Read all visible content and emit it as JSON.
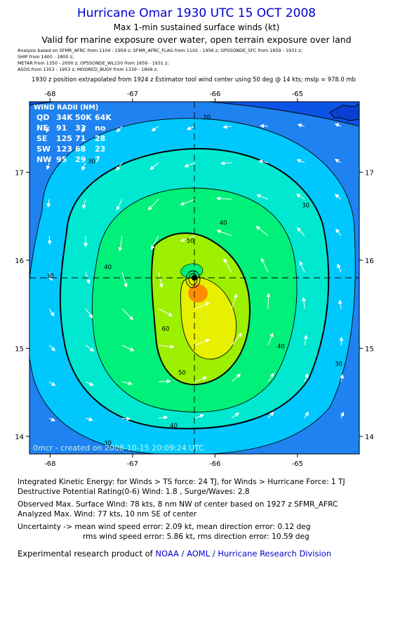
{
  "header": {
    "title": "Hurricane Omar 1930 UTC 15 OCT 2008",
    "subtitle": "Max 1-min sustained surface winds (kt)",
    "valid": "Valid for marine exposure over water, open terrain exposure over land"
  },
  "sources": [
    "Analysis based on  SFMR_AFRC from 1104 - 1959 z;  SFMR_AFRC_FLAG from 1102 - 1956 z;  GPSSONDE_SFC from 1659 - 1931 z;",
    "SHIP from 1400 - 1800 z;",
    "METAR from 1350 - 2000 z;  GPSSONDE_WL150 from 1659 - 1931 z;",
    "ASOS from 1353 - 1953 z;  MOORED_BUOY from 1339 - 1849 z;"
  ],
  "position_note": "1930 z position extrapolated from 1924 z Estimator tool wind center using 50 deg @ 14 kts; mslp = 978.0 mb",
  "wind_radii": {
    "title": "WIND RADII (NM)",
    "header": [
      "QD",
      "34K",
      "50K",
      "64K"
    ],
    "rows": [
      [
        "NE",
        "91",
        "33",
        "no"
      ],
      [
        "SE",
        "125",
        "71",
        "28"
      ],
      [
        "SW",
        "123",
        "68",
        "23"
      ],
      [
        "NW",
        "95",
        "29",
        "7"
      ]
    ]
  },
  "watermark": "0mcr - created on 2008-10-15 20:09:24 UTC",
  "chart_data": {
    "type": "heatmap",
    "x_ticks": [
      -68,
      -67,
      -66,
      -65
    ],
    "y_ticks": [
      14,
      15,
      16,
      17
    ],
    "xlim": [
      -68.25,
      -64.25
    ],
    "ylim": [
      13.8,
      17.8
    ],
    "center": {
      "lon": -66.25,
      "lat": 15.8
    },
    "contour_levels": [
      20,
      30,
      40,
      50,
      60,
      70
    ],
    "contour_labels": [
      {
        "text": "20",
        "lon": -66.1,
        "lat": 17.6
      },
      {
        "text": "30",
        "lon": -67.5,
        "lat": 17.1
      },
      {
        "text": "30",
        "lon": -64.9,
        "lat": 16.6
      },
      {
        "text": "30",
        "lon": -68.0,
        "lat": 15.8
      },
      {
        "text": "30",
        "lon": -64.5,
        "lat": 14.8
      },
      {
        "text": "30",
        "lon": -67.3,
        "lat": 13.9
      },
      {
        "text": "40",
        "lon": -65.9,
        "lat": 16.4
      },
      {
        "text": "40",
        "lon": -67.3,
        "lat": 15.9
      },
      {
        "text": "40",
        "lon": -65.2,
        "lat": 15.0
      },
      {
        "text": "40",
        "lon": -66.5,
        "lat": 14.1
      },
      {
        "text": "50",
        "lon": -66.3,
        "lat": 16.2
      },
      {
        "text": "50",
        "lon": -66.4,
        "lat": 14.7
      },
      {
        "text": "60",
        "lon": -66.6,
        "lat": 15.2
      }
    ],
    "colors": {
      "lt20": "#0b54e6",
      "20-30": "#1e82f0",
      "30-40": "#00c8ff",
      "40-50": "#00e8d0",
      "50-60": "#00f07a",
      "60-70": "#9cf000",
      "70-80": "#e6f000",
      "80plus": "#ff8c00"
    }
  },
  "summary": {
    "ike": "Integrated Kinetic Energy:  for Winds > TS force: 24 TJ,  for Winds > Hurricane Force: 1 TJ",
    "dpr": "Destructive Potential Rating(0-6)   Wind: 1.8 , Surge/Waves: 2.8",
    "obs_max": "Observed Max. Surface Wind: 78 kts, 8 nm NW of center based on 1927 z SFMR_AFRC",
    "analyzed_max": "Analyzed Max. Wind: 77 kts, 10 nm SE of center",
    "uncertainty_1": "Uncertainty -> mean wind speed error: 2.09 kt,   mean direction error: 0.12 deg",
    "uncertainty_2": "rms wind speed error: 5.86 kt,   rms direction error: 10.59 deg"
  },
  "credit": {
    "label": "Experimental research product of",
    "org": "NOAA / AOML / Hurricane Research Division"
  }
}
